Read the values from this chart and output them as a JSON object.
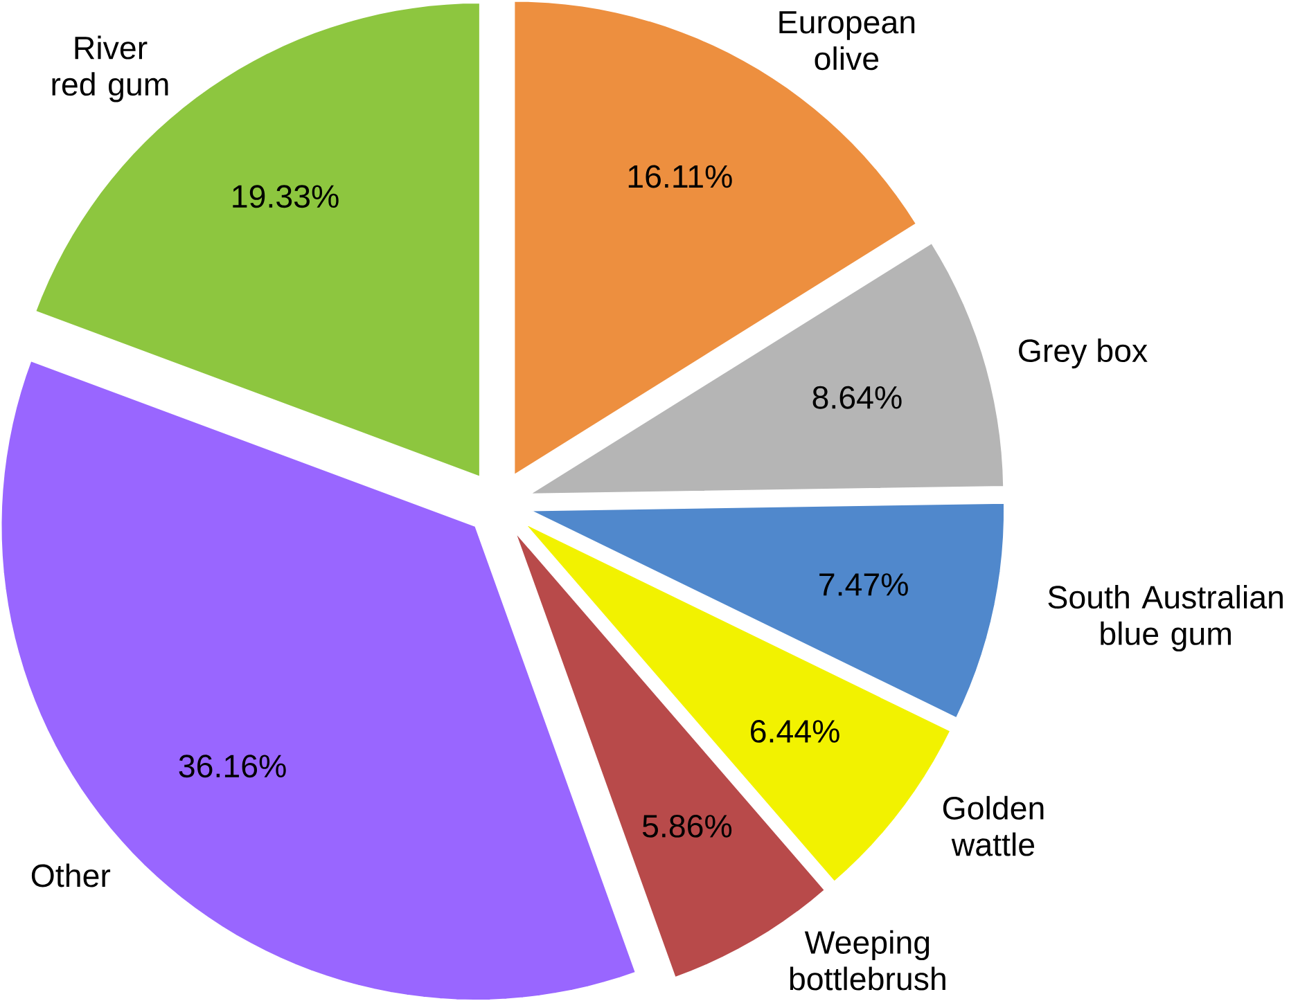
{
  "chart_data": {
    "type": "pie",
    "categories": [
      "European olive",
      "Grey box",
      "South Australian blue gum",
      "Golden wattle",
      "Weeping bottlebrush",
      "Other",
      "River red gum"
    ],
    "values": [
      16.11,
      8.64,
      7.47,
      6.44,
      5.86,
      36.16,
      19.33
    ],
    "value_labels": [
      "16.11%",
      "8.64%",
      "7.47%",
      "6.44%",
      "5.86%",
      "36.16%",
      "19.33%"
    ],
    "colors": [
      "#ed8f3f",
      "#b5b5b5",
      "#5088cc",
      "#f2f200",
      "#b84a4a",
      "#9966ff",
      "#8dc63f"
    ]
  }
}
